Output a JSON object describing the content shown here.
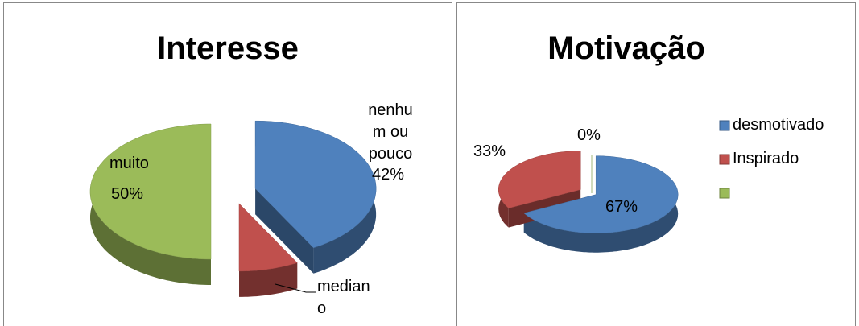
{
  "chart_data": [
    {
      "type": "pie",
      "title": "Interesse",
      "categories": [
        "nenhum ou pouco",
        "mediano",
        "muito"
      ],
      "values": [
        42,
        8,
        50
      ],
      "value_labels": [
        "42%",
        null,
        "50%"
      ],
      "colors": [
        "#4f81bd",
        "#c0504d",
        "#9bbb59"
      ]
    },
    {
      "type": "pie",
      "title": "Motivação",
      "categories": [
        "desmotivado",
        "Inspirado",
        null
      ],
      "values": [
        67,
        33,
        0
      ],
      "value_labels": [
        "67%",
        "33%",
        "0%"
      ],
      "colors": [
        "#4f81bd",
        "#c0504d",
        "#9bbb59"
      ],
      "legend": "right"
    }
  ]
}
